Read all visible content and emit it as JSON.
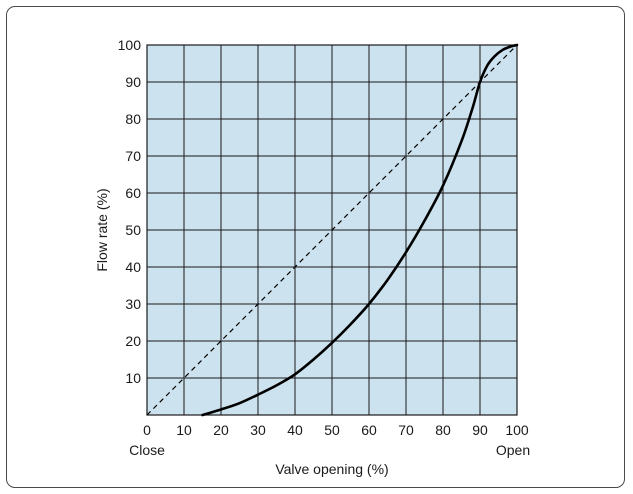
{
  "chart_data": {
    "type": "line",
    "title": "",
    "xlabel": "Valve opening (%)",
    "ylabel": "Flow rate (%)",
    "xlim": [
      0,
      100
    ],
    "ylim": [
      0,
      100
    ],
    "x_ticks": [
      "0",
      "10",
      "20",
      "30",
      "40",
      "50",
      "60",
      "70",
      "80",
      "90",
      "100"
    ],
    "y_ticks": [
      "10",
      "20",
      "30",
      "40",
      "50",
      "60",
      "70",
      "80",
      "90",
      "100"
    ],
    "x_end_labels": {
      "min": "Close",
      "max": "Open"
    },
    "grid": true,
    "legend": "none",
    "colors": {
      "plot_background": "#cce3ef",
      "grid": "#1a1a1a",
      "series": "#000000",
      "frame": "#4a4a4a"
    },
    "series": [
      {
        "style": "dashed",
        "x": [
          0,
          100
        ],
        "y": [
          0,
          100
        ]
      },
      {
        "style": "solid",
        "x": [
          15,
          20,
          25,
          30,
          35,
          40,
          45,
          50,
          55,
          60,
          65,
          70,
          75,
          80,
          85,
          88,
          90,
          92,
          94,
          96,
          98,
          100
        ],
        "y": [
          0,
          1.5,
          3.2,
          5.5,
          8,
          11,
          15,
          19.5,
          24.5,
          30,
          36.5,
          44,
          52.5,
          62,
          74,
          83,
          90,
          94.5,
          97,
          98.6,
          99.5,
          100
        ]
      }
    ]
  }
}
